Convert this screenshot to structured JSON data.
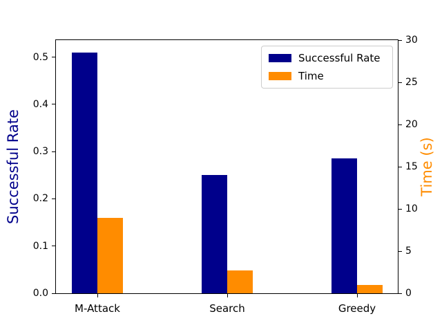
{
  "chart_data": {
    "type": "bar",
    "title": "",
    "categories": [
      "M-Attack",
      "Search",
      "Greedy"
    ],
    "series": [
      {
        "name": "Successful Rate",
        "axis": "left",
        "color": "#00008B",
        "values": [
          0.51,
          0.25,
          0.285
        ]
      },
      {
        "name": "Time",
        "axis": "right",
        "color": "#FF8C00",
        "values": [
          8.9,
          2.7,
          0.95
        ]
      }
    ],
    "left_axis": {
      "label": "Successful Rate",
      "label_color": "#00008B",
      "lim": [
        0,
        0.536
      ],
      "ticks": [
        {
          "v": 0.0,
          "label": "0.0"
        },
        {
          "v": 0.1,
          "label": "0.1"
        },
        {
          "v": 0.2,
          "label": "0.2"
        },
        {
          "v": 0.3,
          "label": "0.3"
        },
        {
          "v": 0.4,
          "label": "0.4"
        },
        {
          "v": 0.5,
          "label": "0.5"
        }
      ]
    },
    "right_axis": {
      "label": "Time (s)",
      "label_color": "#FF8C00",
      "lim": [
        0,
        30
      ],
      "ticks": [
        {
          "v": 0,
          "label": "0"
        },
        {
          "v": 5,
          "label": "5"
        },
        {
          "v": 10,
          "label": "10"
        },
        {
          "v": 15,
          "label": "15"
        },
        {
          "v": 20,
          "label": "20"
        },
        {
          "v": 25,
          "label": "25"
        },
        {
          "v": 30,
          "label": "30"
        }
      ]
    },
    "legend": {
      "position": "upper right"
    },
    "grid": false,
    "background": "#FFFFFF",
    "spine_color": "#000000"
  }
}
